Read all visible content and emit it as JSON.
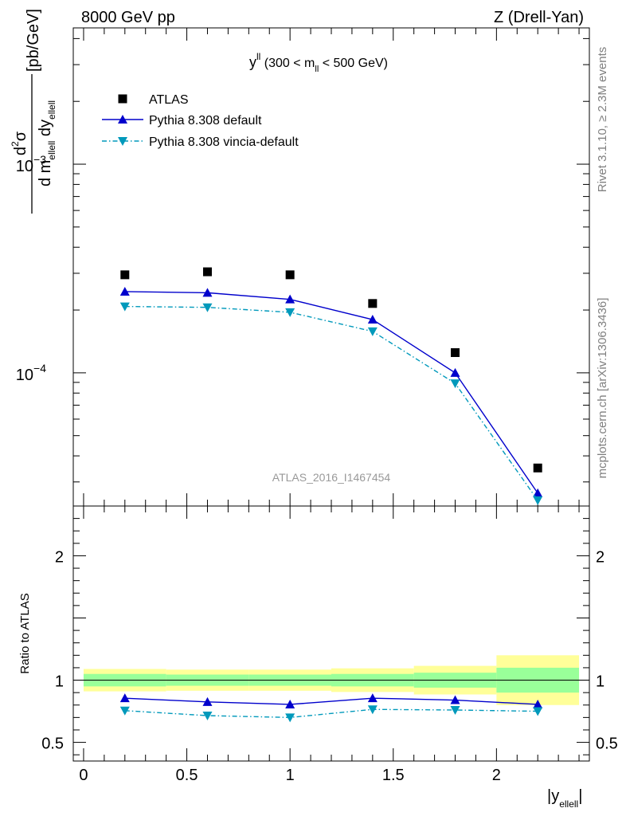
{
  "header": {
    "left": "8000 GeV pp",
    "right": "Z (Drell-Yan)"
  },
  "side": {
    "top": "Rivet 3.1.10, ≥ 2.3M events",
    "bottom": "mcplots.cern.ch [arXiv:1306.3436]"
  },
  "watermark": "ATLAS_2016_I1467454",
  "colors": {
    "data": "#000000",
    "default": "#0000cc",
    "vincia": "#0099bb",
    "band_inner": "#99ff99",
    "band_outer": "#ffff99"
  },
  "chart_data": [
    {
      "type": "scatter",
      "panel": "main",
      "title": "y^ll (300 < m_ll < 500 GeV)",
      "title_parts": {
        "base": "y",
        "sup": "ll",
        "mid": " (300 < m",
        "sub": "ll",
        "end": " < 500 GeV)"
      },
      "ylabel_parts": {
        "num": "dσ",
        "num_sup": "2",
        "den": "d m",
        "den_sub1": "ellell",
        "den_mid": " dy",
        "den_sub2": "ellell",
        "unit": " [pb/GeV]"
      },
      "yscale": "log",
      "ylim": [
        2.3e-05,
        0.0045
      ],
      "xlim": [
        -0.05,
        2.45
      ],
      "yticks": [
        {
          "value": 0.001,
          "base": "10",
          "exp": "−3"
        },
        {
          "value": 0.0001,
          "base": "10",
          "exp": "−4"
        }
      ],
      "legend_position": "top-left",
      "x": [
        0.2,
        0.6,
        1.0,
        1.4,
        1.8,
        2.2
      ],
      "series": [
        {
          "name": "ATLAS",
          "marker": "square",
          "values": [
            0.000295,
            0.000305,
            0.000295,
            0.000215,
            0.000125,
            3.5e-05
          ]
        },
        {
          "name": "Pythia 8.308 default",
          "marker": "triangle-up",
          "line": "solid",
          "values": [
            0.000245,
            0.000242,
            0.000225,
            0.00018,
            0.0001,
            2.65e-05
          ]
        },
        {
          "name": "Pythia 8.308 vincia-default",
          "marker": "triangle-down",
          "line": "dashdot",
          "values": [
            0.000208,
            0.000206,
            0.000195,
            0.000158,
            8.9e-05,
            2.45e-05
          ]
        }
      ]
    },
    {
      "type": "scatter",
      "panel": "ratio",
      "ylabel": "Ratio to ATLAS",
      "xlabel_parts": {
        "base": "|y",
        "sub": "ellell",
        "end": "|"
      },
      "ylim": [
        0.35,
        2.4
      ],
      "xlim": [
        -0.05,
        2.45
      ],
      "yticks": [
        {
          "value": 0.5,
          "label": "0.5"
        },
        {
          "value": 1,
          "label": "1"
        },
        {
          "value": 2,
          "label": "2"
        }
      ],
      "xticks": [
        {
          "value": 0,
          "label": "0"
        },
        {
          "value": 0.5,
          "label": "0.5"
        },
        {
          "value": 1,
          "label": "1"
        },
        {
          "value": 1.5,
          "label": "1.5"
        },
        {
          "value": 2,
          "label": "2"
        }
      ],
      "bins": [
        {
          "lo": 0.0,
          "hi": 0.4,
          "inner": [
            0.95,
            1.05
          ],
          "outer": [
            0.91,
            1.09
          ]
        },
        {
          "lo": 0.4,
          "hi": 0.8,
          "inner": [
            0.955,
            1.045
          ],
          "outer": [
            0.915,
            1.085
          ]
        },
        {
          "lo": 0.8,
          "hi": 1.2,
          "inner": [
            0.955,
            1.045
          ],
          "outer": [
            0.915,
            1.085
          ]
        },
        {
          "lo": 1.2,
          "hi": 1.6,
          "inner": [
            0.95,
            1.05
          ],
          "outer": [
            0.905,
            1.095
          ]
        },
        {
          "lo": 1.6,
          "hi": 2.0,
          "inner": [
            0.94,
            1.06
          ],
          "outer": [
            0.885,
            1.115
          ]
        },
        {
          "lo": 2.0,
          "hi": 2.4,
          "inner": [
            0.9,
            1.1
          ],
          "outer": [
            0.8,
            1.2
          ]
        }
      ],
      "x": [
        0.2,
        0.6,
        1.0,
        1.4,
        1.8,
        2.2
      ],
      "series": [
        {
          "name": "Pythia 8.308 default",
          "marker": "triangle-up",
          "line": "solid",
          "values": [
            0.855,
            0.825,
            0.805,
            0.855,
            0.84,
            0.805
          ]
        },
        {
          "name": "Pythia 8.308 vincia-default",
          "marker": "triangle-down",
          "line": "dashdot",
          "values": [
            0.755,
            0.715,
            0.7,
            0.765,
            0.76,
            0.75
          ]
        }
      ]
    }
  ]
}
